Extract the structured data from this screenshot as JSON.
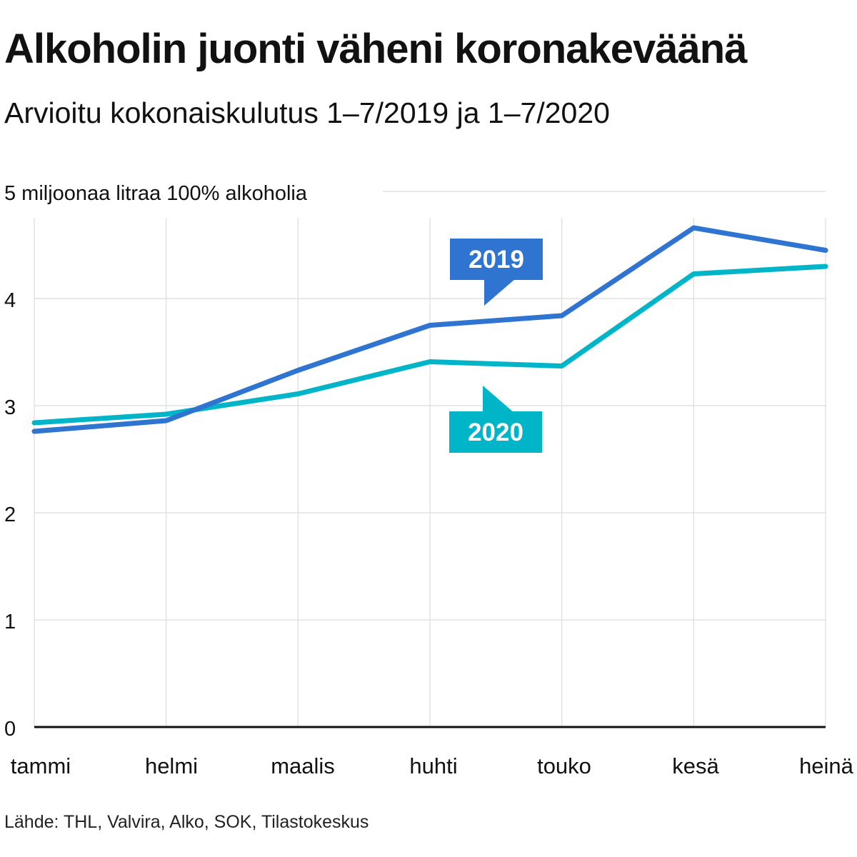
{
  "title": "Alkoholin juonti väheni koronakeväänä",
  "subtitle": "Arvioitu kokonaiskulutus 1–7/2019 ja 1–7/2020",
  "source": "Lähde: THL, Valvira, Alko, SOK, Tilastokeskus",
  "chart_data": {
    "type": "line",
    "unit_label": "5 miljoonaa litraa 100% alkoholia",
    "categories": [
      "tammi",
      "helmi",
      "maalis",
      "huhti",
      "touko",
      "kesä",
      "heinä"
    ],
    "y_ticks": [
      "0",
      "1",
      "2",
      "3",
      "4"
    ],
    "ylim": [
      0,
      5
    ],
    "grid": true,
    "series": [
      {
        "name": "2019",
        "color": "#2f74d0",
        "values": [
          2.76,
          2.86,
          3.33,
          3.75,
          3.84,
          4.66,
          4.45
        ]
      },
      {
        "name": "2020",
        "color": "#00b5c8",
        "values": [
          2.84,
          2.92,
          3.11,
          3.41,
          3.37,
          4.23,
          4.3
        ]
      }
    ]
  }
}
